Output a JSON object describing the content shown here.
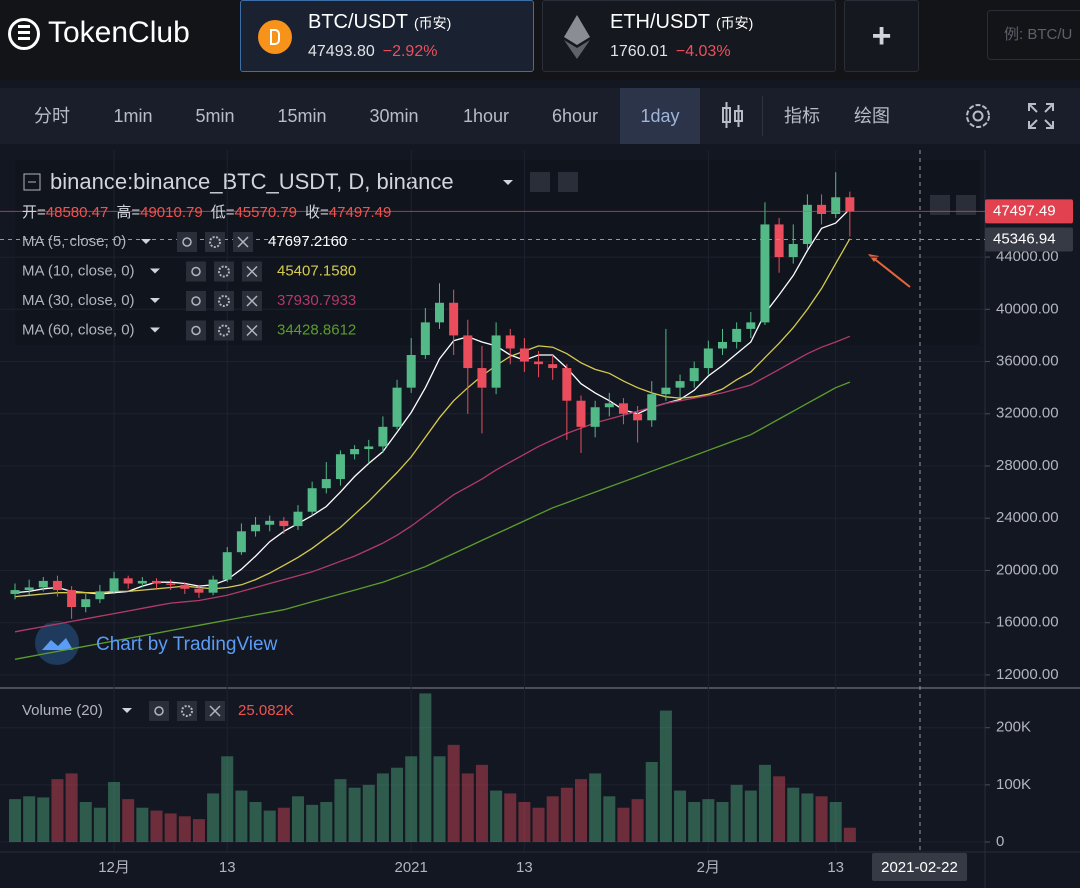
{
  "header": {
    "logo": "TokenClub",
    "tabs": [
      {
        "pair": "BTC/USDT",
        "exchange": "(币安)",
        "price": "47493.80",
        "change": "−2.92%"
      },
      {
        "pair": "ETH/USDT",
        "exchange": "(币安)",
        "price": "1760.01",
        "change": "−4.03%"
      }
    ],
    "add": "+",
    "search_placeholder": "例: BTC/U"
  },
  "toolbar": {
    "intervals": [
      "分时",
      "1min",
      "5min",
      "15min",
      "30min",
      "1hour",
      "6hour",
      "1day"
    ],
    "indicators": "指标",
    "drawing": "绘图"
  },
  "chart_data": {
    "type": "candlestick",
    "title": "binance:binance_BTC_USDT, D, binance",
    "ohlc_legend": [
      {
        "label": "开=",
        "value": "48580.47"
      },
      {
        "label": "高=",
        "value": "49010.79"
      },
      {
        "label": "低=",
        "value": "45570.79"
      },
      {
        "label": "收=",
        "value": "47497.49"
      }
    ],
    "categories": [
      null,
      null,
      null,
      null,
      null,
      null,
      null,
      "12月",
      null,
      null,
      null,
      null,
      null,
      null,
      null,
      "13",
      null,
      null,
      null,
      null,
      null,
      null,
      null,
      null,
      null,
      null,
      null,
      null,
      "2021",
      null,
      null,
      null,
      null,
      null,
      null,
      null,
      "13",
      null,
      null,
      null,
      null,
      null,
      null,
      null,
      null,
      null,
      null,
      null,
      null,
      "2月",
      null,
      null,
      null,
      null,
      null,
      null,
      null,
      null,
      "13",
      null
    ],
    "open": [
      18200,
      18500,
      18700,
      19200,
      18500,
      17200,
      17800,
      18400,
      19400,
      19000,
      19200,
      19000,
      18900,
      18600,
      18300,
      19300,
      21400,
      23000,
      23500,
      23800,
      23400,
      24500,
      26300,
      27000,
      28900,
      29300,
      29500,
      31000,
      34000,
      36500,
      39000,
      40500,
      38000,
      35500,
      34000,
      38000,
      37000,
      36000,
      35800,
      35500,
      33000,
      31000,
      32500,
      32800,
      32000,
      31500,
      33500,
      34000,
      34500,
      35500,
      37000,
      37500,
      38500,
      39000,
      46500,
      44000,
      45000,
      48000,
      47300,
      48580
    ],
    "high": [
      19000,
      19300,
      19500,
      19600,
      18800,
      18200,
      18900,
      19900,
      19600,
      19500,
      19400,
      19300,
      19100,
      18900,
      19600,
      21800,
      23600,
      24100,
      24200,
      24100,
      25000,
      26800,
      28300,
      29200,
      29600,
      30000,
      31800,
      34600,
      37800,
      40100,
      42000,
      41500,
      39200,
      37200,
      39000,
      38500,
      37800,
      36800,
      36500,
      35800,
      33400,
      33000,
      33600,
      33200,
      32600,
      34500,
      38500,
      35000,
      36000,
      37600,
      38500,
      39000,
      39800,
      48200,
      47000,
      46500,
      48800,
      48800,
      50500,
      49010.79
    ],
    "low": [
      17800,
      18100,
      18400,
      18000,
      16300,
      16800,
      17500,
      18200,
      18600,
      18700,
      18600,
      18500,
      18200,
      17900,
      18100,
      19100,
      21200,
      22600,
      23000,
      22800,
      23100,
      24200,
      25900,
      26500,
      28500,
      28200,
      29000,
      30800,
      33600,
      36200,
      38500,
      36500,
      32000,
      30500,
      33500,
      35800,
      35200,
      34800,
      34600,
      30000,
      29000,
      30200,
      31800,
      31200,
      29800,
      31000,
      33000,
      33200,
      34000,
      35000,
      36500,
      37000,
      37800,
      38800,
      42800,
      43500,
      44600,
      46500,
      47000,
      45570.79
    ],
    "close": [
      18500,
      18700,
      19200,
      18500,
      17200,
      17800,
      18400,
      19400,
      19000,
      19200,
      19000,
      18900,
      18600,
      18300,
      19300,
      21400,
      23000,
      23500,
      23800,
      23400,
      24500,
      26300,
      27000,
      28900,
      29300,
      29500,
      31000,
      34000,
      36500,
      39000,
      40500,
      38000,
      35500,
      34000,
      38000,
      37000,
      36000,
      35800,
      35500,
      33000,
      31000,
      32500,
      32800,
      32000,
      31500,
      33500,
      34000,
      34500,
      35500,
      37000,
      37500,
      38500,
      39000,
      46500,
      44000,
      45000,
      48000,
      47300,
      48580,
      47497.49
    ],
    "up_color": "#53b987",
    "down_color": "#eb4d5c",
    "ylim": [
      11000,
      52200
    ],
    "yticks": [
      {
        "value": 12000,
        "label": "12000.00"
      },
      {
        "value": 16000,
        "label": "16000.00"
      },
      {
        "value": 20000,
        "label": "20000.00"
      },
      {
        "value": 24000,
        "label": "24000.00"
      },
      {
        "value": 28000,
        "label": "28000.00"
      },
      {
        "value": 32000,
        "label": "32000.00"
      },
      {
        "value": 36000,
        "label": "36000.00"
      },
      {
        "value": 40000,
        "label": "40000.00"
      },
      {
        "value": 44000,
        "label": "44000.00"
      }
    ],
    "grid": true,
    "moving_averages": [
      {
        "name": "MA (5, close, 0)",
        "value_label": "47697.2160",
        "color": "#ffffff",
        "values": [
          18300,
          18400,
          18600,
          18700,
          18400,
          18300,
          18200,
          18300,
          18400,
          18800,
          19100,
          19100,
          19000,
          18800,
          18900,
          19300,
          20100,
          21100,
          22200,
          23000,
          23600,
          24200,
          24900,
          26000,
          27200,
          28200,
          29100,
          30600,
          32100,
          34000,
          36200,
          37600,
          37900,
          37500,
          37200,
          36500,
          36100,
          36500,
          36500,
          35500,
          34300,
          33600,
          33000,
          32300,
          32000,
          32500,
          32800,
          33100,
          33800,
          34900,
          35700,
          36600,
          37500,
          39700,
          41100,
          42600,
          44500,
          46200,
          46600,
          47697.216
        ]
      },
      {
        "name": "MA (10, close, 0)",
        "value_label": "45407.1580",
        "color": "#d6cb4f",
        "values": [
          18000,
          18100,
          18200,
          18300,
          18300,
          18300,
          18300,
          18400,
          18400,
          18500,
          18600,
          18700,
          18800,
          18700,
          18600,
          18700,
          18900,
          19300,
          19800,
          20400,
          21000,
          21700,
          22500,
          23300,
          24300,
          25300,
          26400,
          27500,
          28700,
          30200,
          31700,
          33000,
          34000,
          34900,
          35700,
          36400,
          36800,
          37200,
          37100,
          36600,
          35900,
          35400,
          35100,
          34500,
          34000,
          33600,
          33300,
          33200,
          33300,
          33500,
          33900,
          34600,
          35200,
          36300,
          37400,
          38600,
          40000,
          41600,
          43500,
          45407.158
        ]
      },
      {
        "name": "MA (30, close, 0)",
        "value_label": "37930.7933",
        "color": "#b23a68",
        "values": [
          15300,
          15500,
          15700,
          15900,
          16100,
          16300,
          16500,
          16700,
          16900,
          17100,
          17300,
          17500,
          17600,
          17700,
          17900,
          18100,
          18400,
          18700,
          19000,
          19300,
          19600,
          19900,
          20300,
          20700,
          21100,
          21600,
          22100,
          22700,
          23400,
          24200,
          25000,
          25800,
          26400,
          27000,
          27700,
          28300,
          28900,
          29500,
          30000,
          30500,
          30900,
          31300,
          31600,
          31900,
          32200,
          32500,
          32800,
          33000,
          33200,
          33400,
          33600,
          33900,
          34200,
          34800,
          35400,
          36000,
          36600,
          37100,
          37500,
          37930.7933
        ]
      },
      {
        "name": "MA (60, close, 0)",
        "value_label": "34428.8612",
        "color": "#5c9d2c",
        "values": [
          13200,
          13400,
          13600,
          13800,
          14000,
          14200,
          14400,
          14600,
          14800,
          15000,
          15200,
          15400,
          15600,
          15800,
          16000,
          16200,
          16400,
          16600,
          16800,
          17000,
          17300,
          17600,
          17900,
          18200,
          18500,
          18800,
          19100,
          19500,
          19900,
          20300,
          20800,
          21300,
          21800,
          22300,
          22800,
          23300,
          23800,
          24300,
          24800,
          25200,
          25600,
          26000,
          26400,
          26800,
          27200,
          27600,
          28000,
          28400,
          28800,
          29200,
          29600,
          30000,
          30400,
          31000,
          31600,
          32200,
          32800,
          33400,
          34000,
          34428.8612
        ]
      }
    ],
    "volume": {
      "name": "Volume (20)",
      "value_label": "25.082K",
      "values": [
        75000,
        80000,
        78000,
        110000,
        120000,
        70000,
        60000,
        105000,
        75000,
        60000,
        55000,
        50000,
        45000,
        40000,
        85000,
        150000,
        90000,
        70000,
        55000,
        60000,
        80000,
        65000,
        70000,
        110000,
        95000,
        100000,
        120000,
        130000,
        150000,
        260000,
        150000,
        170000,
        120000,
        135000,
        90000,
        85000,
        70000,
        60000,
        80000,
        95000,
        110000,
        120000,
        80000,
        60000,
        75000,
        140000,
        230000,
        90000,
        70000,
        75000,
        70000,
        100000,
        90000,
        135000,
        115000,
        95000,
        85000,
        80000,
        70000,
        25000
      ],
      "ylim": [
        0,
        266000
      ],
      "yticks": [
        0,
        {
          "value": 100000,
          "label": "100K"
        },
        {
          "value": 200000,
          "label": "200K"
        }
      ]
    },
    "last_price": 47497.49,
    "crosshair_price": 45346.94,
    "crosshair_date": "2021-02-22",
    "watermark": "Chart by TradingView"
  }
}
